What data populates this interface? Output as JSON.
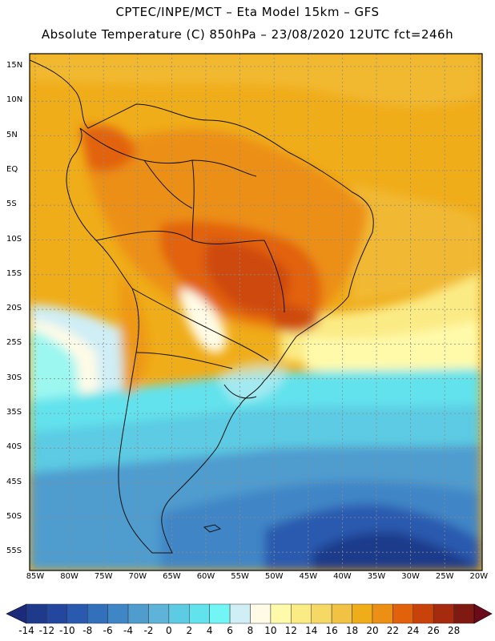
{
  "header": {
    "line1": "CPTEC/INPE/MCT –   Eta Model 15km – GFS",
    "line2": "Absolute Temperature (C) 850hPa – 23/08/2020 12UTC fct=246h"
  },
  "map": {
    "lat_labels": [
      "15N",
      "10N",
      "5N",
      "EQ",
      "5S",
      "10S",
      "15S",
      "20S",
      "25S",
      "30S",
      "35S",
      "40S",
      "45S",
      "50S",
      "55S"
    ],
    "lon_labels": [
      "85W",
      "80W",
      "75W",
      "70W",
      "65W",
      "60W",
      "55W",
      "50W",
      "45W",
      "40W",
      "35W",
      "30W",
      "25W",
      "20W"
    ]
  },
  "colorbar": {
    "labels": [
      "-14",
      "-12",
      "-10",
      "-8",
      "-6",
      "-4",
      "-2",
      "0",
      "2",
      "4",
      "6",
      "8",
      "10",
      "12",
      "14",
      "16",
      "18",
      "20",
      "22",
      "24",
      "26",
      "28"
    ],
    "under_color": "#1b2a7a",
    "over_color": "#6b0a1a",
    "colors": [
      "#1e3a8a",
      "#23479e",
      "#2a5aaf",
      "#3270bc",
      "#3f86c6",
      "#4f9ccf",
      "#5fb2d8",
      "#5ccbe3",
      "#62e2ec",
      "#72f5f5",
      "#cfeef5",
      "#fffbe6",
      "#fffaaa",
      "#fbeb85",
      "#f6d865",
      "#f2c244",
      "#f0ad1a",
      "#ec8f15",
      "#e2620c",
      "#c9420a",
      "#a62a0e",
      "#7f1a12"
    ]
  },
  "palette": {
    "land_border": "#111111",
    "grid": "#8a8a8a",
    "frame": "#000000"
  }
}
